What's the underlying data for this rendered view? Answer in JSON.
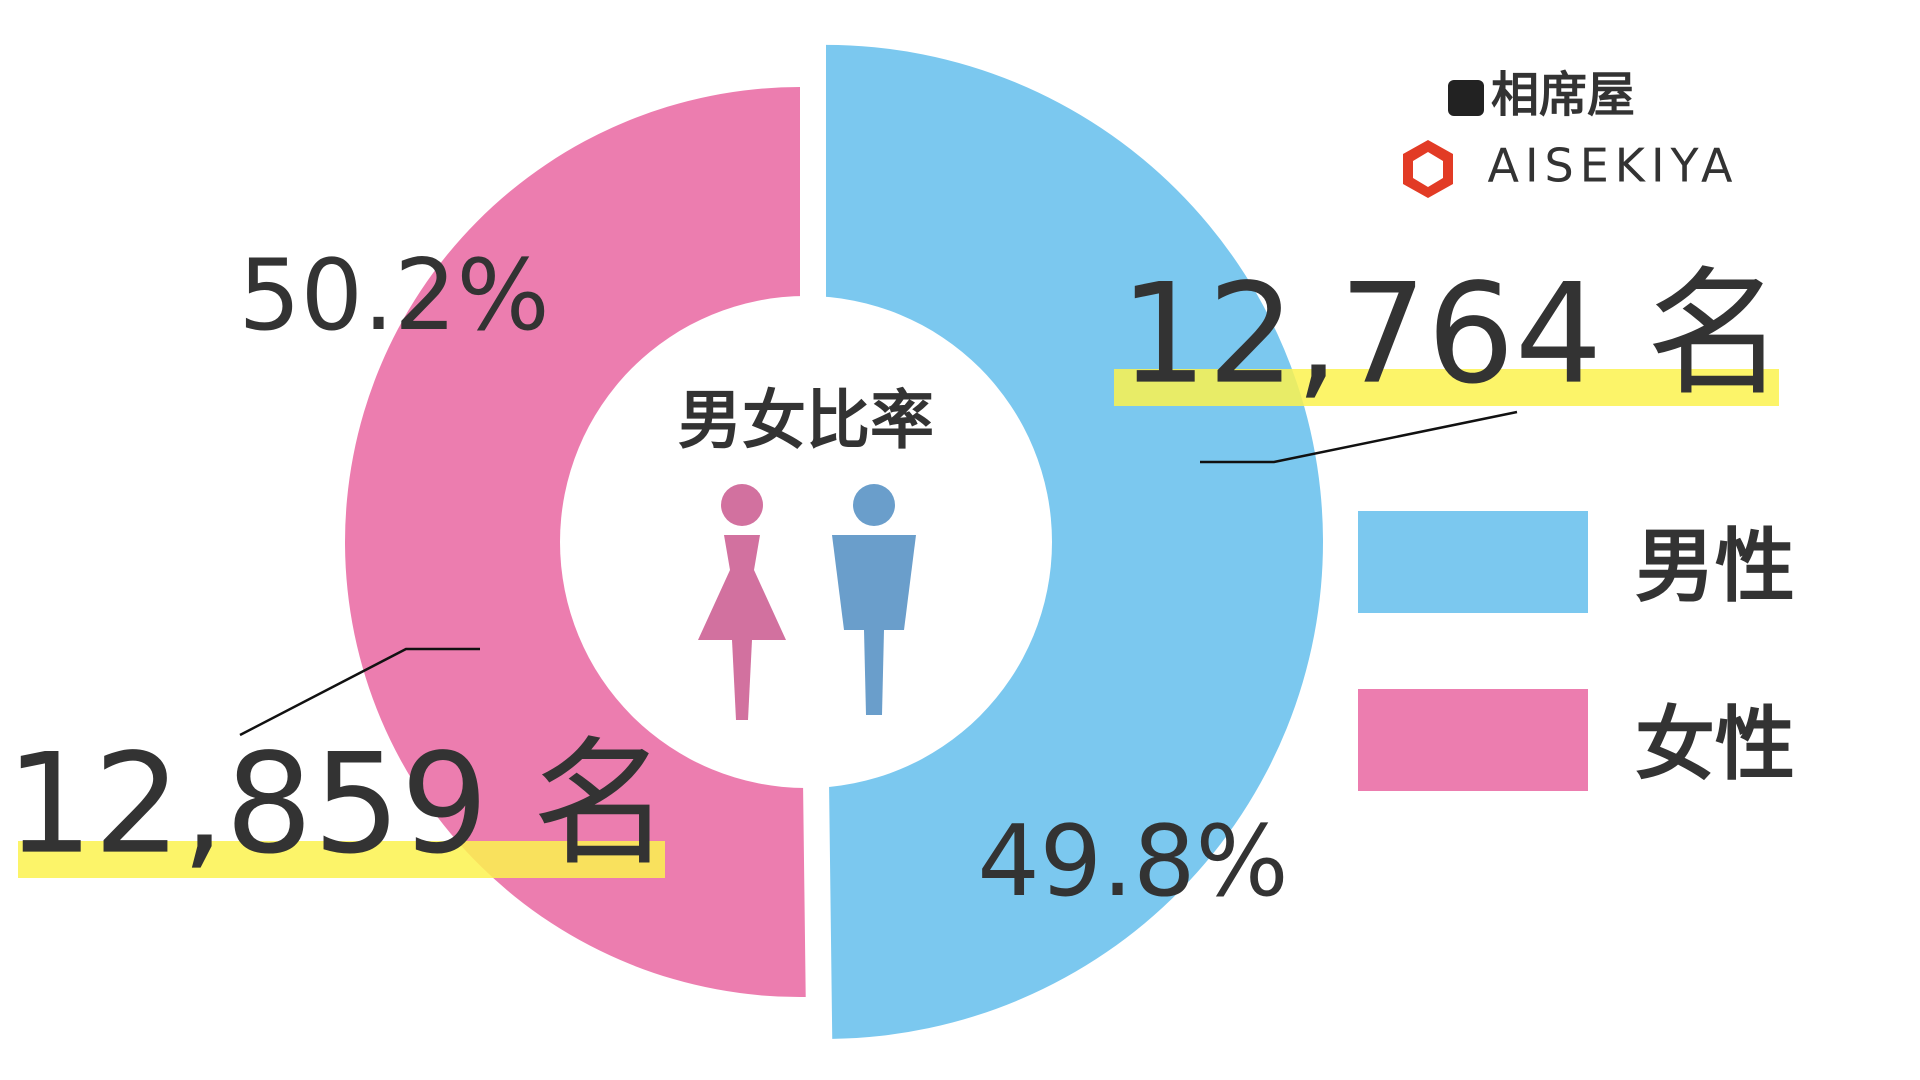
{
  "chart_data": {
    "type": "pie",
    "title": "男女比率",
    "categories": [
      "男性",
      "女性"
    ],
    "values": [
      49.8,
      50.2
    ],
    "value_labels": [
      "49.8%",
      "50.2%"
    ],
    "count_labels": [
      "12,764 名",
      "12,859 名"
    ],
    "colors": [
      "#7bc8ef",
      "#ec7daf"
    ],
    "donut": true,
    "legend": "right"
  },
  "brand": {
    "name_ja": "相席屋",
    "name_en": "AISEKIYA"
  }
}
